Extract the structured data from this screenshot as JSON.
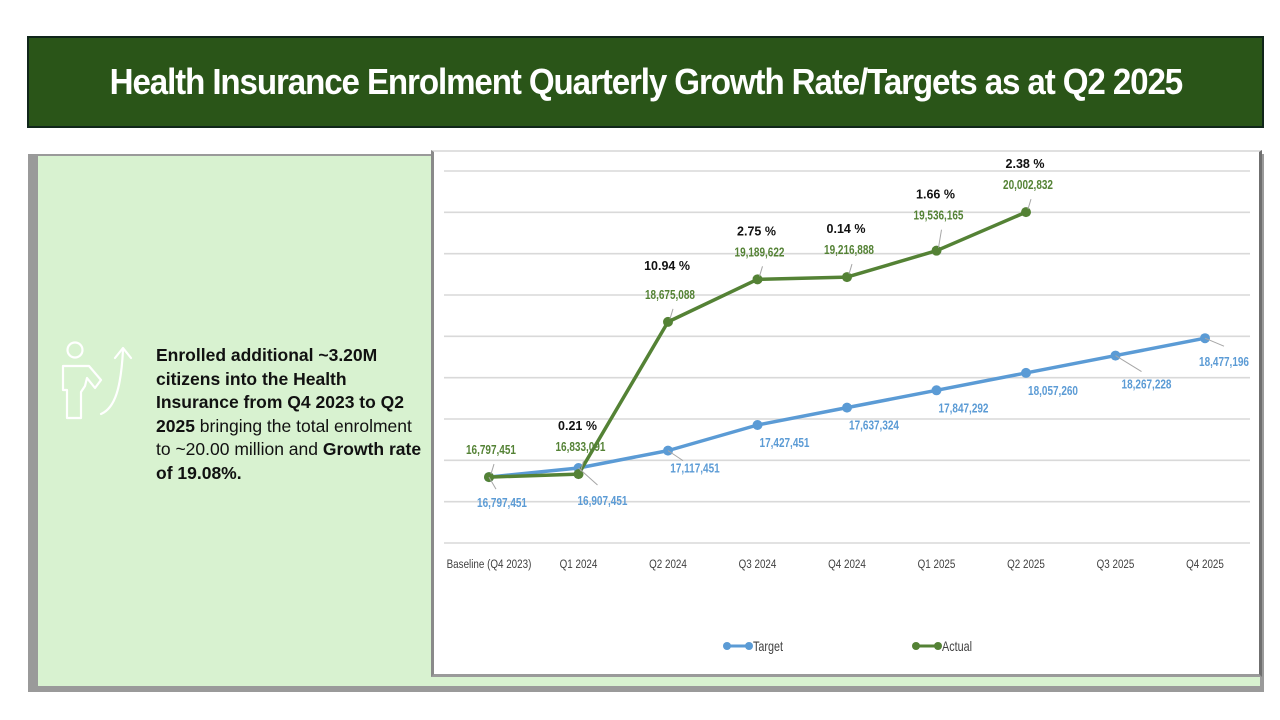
{
  "header": {
    "title": "Health Insurance Enrolment Quarterly Growth Rate/Targets as at Q2 2025"
  },
  "summary": {
    "icon": "person-growth-arrow-icon",
    "parts": [
      {
        "text": "Enrolled additional ~3.20M citizens into the Health Insurance from Q4 2023 to Q2 2025",
        "bold": true
      },
      {
        "text": " bringing the total enrolment  to ~20.00 million  and ",
        "bold": false
      },
      {
        "text": "Growth rate of 19.08%.",
        "bold": true
      }
    ]
  },
  "colors": {
    "title_bg": "#2a5518",
    "panel_bg": "#d8f2d0",
    "target": "#5b9bd5",
    "actual": "#548235",
    "growth": "#111111"
  },
  "chart_data": {
    "type": "line",
    "title": "",
    "xlabel": "",
    "ylabel": "",
    "categories": [
      "Baseline (Q4 2023)",
      "Q1 2024",
      "Q2 2024",
      "Q3 2024",
      "Q4 2024",
      "Q1 2025",
      "Q2 2025",
      "Q3 2025",
      "Q4 2025"
    ],
    "series": [
      {
        "name": "Target",
        "color": "#5b9bd5",
        "values": [
          16797451,
          16907451,
          17117451,
          17427451,
          17637324,
          17847292,
          18057260,
          18267228,
          18477196
        ],
        "labels": [
          "16,797,451",
          "16,907,451",
          "17,117,451",
          "17,427,451",
          "17,637,324",
          "17,847,292",
          "18,057,260",
          "18,267,228",
          "18,477,196"
        ]
      },
      {
        "name": "Actual",
        "color": "#548235",
        "values": [
          16797451,
          16833091,
          18675088,
          19189622,
          19216888,
          19536165,
          20002832,
          null,
          null
        ],
        "labels": [
          "16,797,451",
          "16,833,091",
          "18,675,088",
          "19,189,622",
          "19,216,888",
          "19,536,165",
          "20,002,832",
          null,
          null
        ]
      }
    ],
    "growth_annotations": [
      null,
      "0.21 %",
      "10.94 %",
      "2.75 %",
      "0.14 %",
      "1.66 %",
      "2.38 %",
      null,
      null
    ],
    "ylim": [
      16000000,
      20500000
    ],
    "ytick_step": 500000,
    "y_axis_labels_visible": false,
    "grid": true,
    "legend": {
      "position": "bottom",
      "entries": [
        "Target",
        "Actual"
      ]
    }
  }
}
